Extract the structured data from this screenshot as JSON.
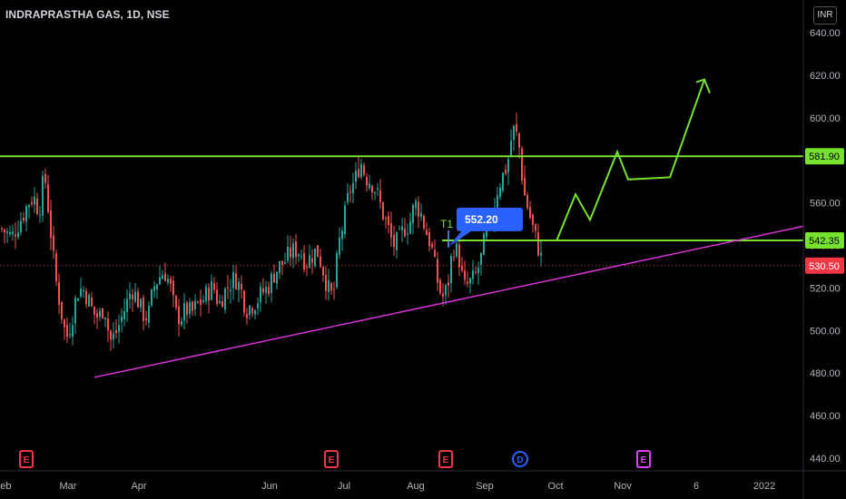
{
  "header": {
    "title": "INDRAPRASTHA GAS, 1D, NSE",
    "currency": "INR"
  },
  "chart_data": {
    "type": "candlestick",
    "ylim": [
      440,
      640
    ],
    "y_ticks": [
      "640.00",
      "620.00",
      "600.00",
      "580.00",
      "560.00",
      "540.00",
      "520.00",
      "500.00",
      "480.00",
      "460.00",
      "440.00"
    ],
    "x_ticks": [
      "Feb",
      "Mar",
      "Apr",
      "Jun",
      "Jul",
      "Aug",
      "Sep",
      "Oct",
      "Nov",
      "6",
      "2022"
    ],
    "horizontal_lines": [
      {
        "price": 581.9,
        "label": "581.90",
        "color": "#76e22e"
      },
      {
        "price": 542.35,
        "label": "542.35",
        "color": "#76e22e"
      }
    ],
    "last_price": {
      "price": 530.5,
      "label": "530.50",
      "color": "#f23645"
    },
    "callout": {
      "label": "552.20",
      "price": 552.2,
      "marker": "T1"
    },
    "trendline_color": "#d633d6",
    "projection_color": "#76e22e",
    "events": [
      {
        "type": "earnings",
        "label": "E",
        "color": "#f23645"
      },
      {
        "type": "earnings",
        "label": "E",
        "color": "#f23645"
      },
      {
        "type": "earnings",
        "label": "E",
        "color": "#f23645"
      },
      {
        "type": "dividend",
        "label": "D",
        "color": "#2962ff"
      },
      {
        "type": "earnings",
        "label": "E",
        "color": "#e040fb"
      }
    ],
    "price_path": [
      [
        0,
        548
      ],
      [
        6,
        546
      ],
      [
        12,
        544
      ],
      [
        18,
        549
      ],
      [
        24,
        554
      ],
      [
        30,
        560
      ],
      [
        36,
        563
      ],
      [
        42,
        556
      ],
      [
        48,
        574
      ],
      [
        54,
        550
      ],
      [
        60,
        525
      ],
      [
        66,
        510
      ],
      [
        72,
        496
      ],
      [
        78,
        505
      ],
      [
        84,
        518
      ],
      [
        90,
        520
      ],
      [
        96,
        515
      ],
      [
        102,
        508
      ],
      [
        108,
        506
      ],
      [
        114,
        512
      ],
      [
        120,
        495
      ],
      [
        126,
        498
      ],
      [
        132,
        505
      ],
      [
        138,
        512
      ],
      [
        144,
        520
      ],
      [
        150,
        515
      ],
      [
        156,
        508
      ],
      [
        162,
        506
      ],
      [
        168,
        520
      ],
      [
        174,
        525
      ],
      [
        180,
        528
      ],
      [
        186,
        522
      ],
      [
        192,
        508
      ],
      [
        198,
        506
      ],
      [
        204,
        510
      ],
      [
        210,
        508
      ],
      [
        216,
        512
      ],
      [
        222,
        514
      ],
      [
        228,
        518
      ],
      [
        234,
        521
      ],
      [
        240,
        512
      ],
      [
        246,
        518
      ],
      [
        252,
        522
      ],
      [
        258,
        525
      ],
      [
        264,
        520
      ],
      [
        270,
        510
      ],
      [
        276,
        512
      ],
      [
        282,
        514
      ],
      [
        288,
        518
      ],
      [
        294,
        520
      ],
      [
        300,
        526
      ],
      [
        306,
        530
      ],
      [
        312,
        532
      ],
      [
        318,
        536
      ],
      [
        324,
        538
      ],
      [
        330,
        537
      ],
      [
        336,
        532
      ],
      [
        342,
        535
      ],
      [
        348,
        538
      ],
      [
        354,
        530
      ],
      [
        360,
        520
      ],
      [
        366,
        515
      ],
      [
        372,
        540
      ],
      [
        378,
        552
      ],
      [
        384,
        566
      ],
      [
        390,
        570
      ],
      [
        396,
        580
      ],
      [
        402,
        572
      ],
      [
        408,
        570
      ],
      [
        414,
        565
      ],
      [
        420,
        556
      ],
      [
        426,
        549
      ],
      [
        432,
        540
      ],
      [
        438,
        542
      ],
      [
        444,
        548
      ],
      [
        450,
        550
      ],
      [
        456,
        560
      ],
      [
        462,
        556
      ],
      [
        468,
        547
      ],
      [
        474,
        540
      ],
      [
        480,
        525
      ],
      [
        486,
        515
      ],
      [
        492,
        520
      ],
      [
        498,
        540
      ],
      [
        504,
        536
      ],
      [
        510,
        520
      ],
      [
        516,
        522
      ],
      [
        522,
        525
      ],
      [
        528,
        532
      ],
      [
        534,
        545
      ],
      [
        540,
        550
      ],
      [
        546,
        565
      ],
      [
        552,
        572
      ],
      [
        558,
        578
      ],
      [
        564,
        595
      ],
      [
        570,
        590
      ],
      [
        576,
        565
      ],
      [
        582,
        555
      ],
      [
        588,
        545
      ],
      [
        594,
        536
      ],
      [
        597,
        530.5
      ]
    ],
    "trendline": [
      [
        104,
        478
      ],
      [
        885,
        549
      ]
    ],
    "projection": [
      [
        613,
        542
      ],
      [
        634,
        564
      ],
      [
        650,
        552
      ],
      [
        680,
        584
      ],
      [
        692,
        571
      ],
      [
        738,
        572
      ],
      [
        776,
        618
      ]
    ]
  }
}
